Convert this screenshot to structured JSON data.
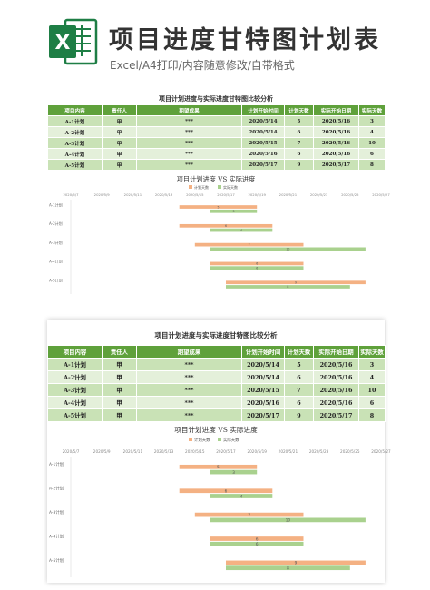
{
  "header": {
    "logo_letter": "X",
    "title": "项目进度甘特图计划表",
    "subtitle": "Excel/A4打印/内容随意修改/自带格式"
  },
  "colors": {
    "accent": "#5fa13b",
    "plan": "#f4b183",
    "actual": "#a9d18e",
    "logo": "#1e7e45"
  },
  "sheet": {
    "title": "项目计划进度与实际进度甘特图比较分析",
    "headers": [
      "项目内容",
      "责任人",
      "期望成果",
      "计划开始时间",
      "计划天数",
      "实际开始日期",
      "实际天数"
    ],
    "rows": [
      [
        "A-1计划",
        "甲",
        "***",
        "2020/5/14",
        "5",
        "2020/5/16",
        "3"
      ],
      [
        "A-2计划",
        "甲",
        "***",
        "2020/5/14",
        "6",
        "2020/5/16",
        "4"
      ],
      [
        "A-3计划",
        "甲",
        "***",
        "2020/5/15",
        "7",
        "2020/5/16",
        "10"
      ],
      [
        "A-4计划",
        "甲",
        "***",
        "2020/5/16",
        "6",
        "2020/5/16",
        "6"
      ],
      [
        "A-5计划",
        "甲",
        "***",
        "2020/5/17",
        "9",
        "2020/5/17",
        "8"
      ]
    ]
  },
  "chart_data": {
    "type": "bar",
    "title": "项目计划进度 VS 实际进度",
    "legend": [
      "计划天数",
      "实际天数"
    ],
    "legend_position": "top",
    "x_ticks": [
      "2020/5/7",
      "2020/5/9",
      "2020/5/11",
      "2020/5/13",
      "2020/5/15",
      "2020/5/17",
      "2020/5/19",
      "2020/5/21",
      "2020/5/23",
      "2020/5/25",
      "2020/5/27"
    ],
    "categories": [
      "A-1计划",
      "A-2计划",
      "A-3计划",
      "A-4计划",
      "A-5计划"
    ],
    "series": [
      {
        "name": "计划天数",
        "start": [
          "2020/5/14",
          "2020/5/14",
          "2020/5/15",
          "2020/5/16",
          "2020/5/17"
        ],
        "values": [
          5,
          6,
          7,
          6,
          9
        ]
      },
      {
        "name": "实际天数",
        "start": [
          "2020/5/16",
          "2020/5/16",
          "2020/5/16",
          "2020/5/16",
          "2020/5/17"
        ],
        "values": [
          3,
          4,
          10,
          6,
          8
        ]
      }
    ]
  }
}
